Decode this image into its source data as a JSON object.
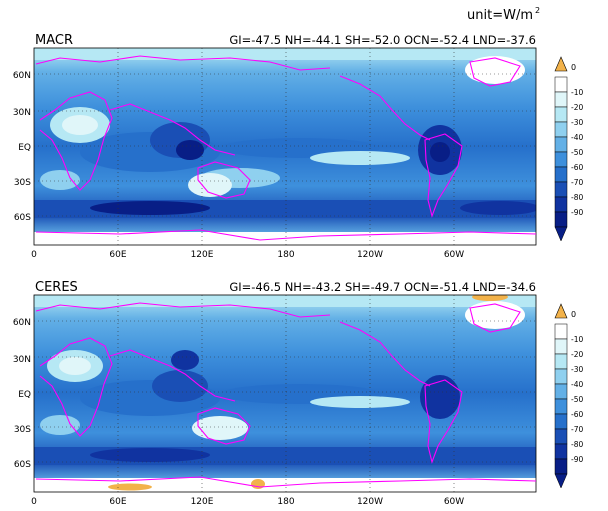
{
  "unit": {
    "prefix": "unit=W/m",
    "sup": "2"
  },
  "panels": [
    {
      "title": "MACR",
      "stats": "GI=-47.5  NH=-44.1  SH=-52.0  OCN=-52.4  LND=-37.6"
    },
    {
      "title": "CERES",
      "stats": "GI=-46.5  NH=-43.2  SH=-49.7  OCN=-51.4  LND=-34.6"
    }
  ],
  "map": {
    "lat_labels": [
      "60N",
      "30N",
      "EQ",
      "30S",
      "60S"
    ],
    "lon_labels": [
      "0",
      "60E",
      "120E",
      "180",
      "120W",
      "60W"
    ]
  },
  "colorbar": {
    "over_label": "0",
    "levels": [
      "-10",
      "-20",
      "-30",
      "-40",
      "-50",
      "-60",
      "-70",
      "-80",
      "-90"
    ],
    "colors": [
      "#ffffff",
      "#e0f6f9",
      "#b6e8f4",
      "#8fd0ef",
      "#63b0e6",
      "#3e90dc",
      "#2670cb",
      "#1a4fb5",
      "#1033a0",
      "#081e86"
    ],
    "over_color": "#f2b24a"
  },
  "coast_color": "#ff00ff"
}
